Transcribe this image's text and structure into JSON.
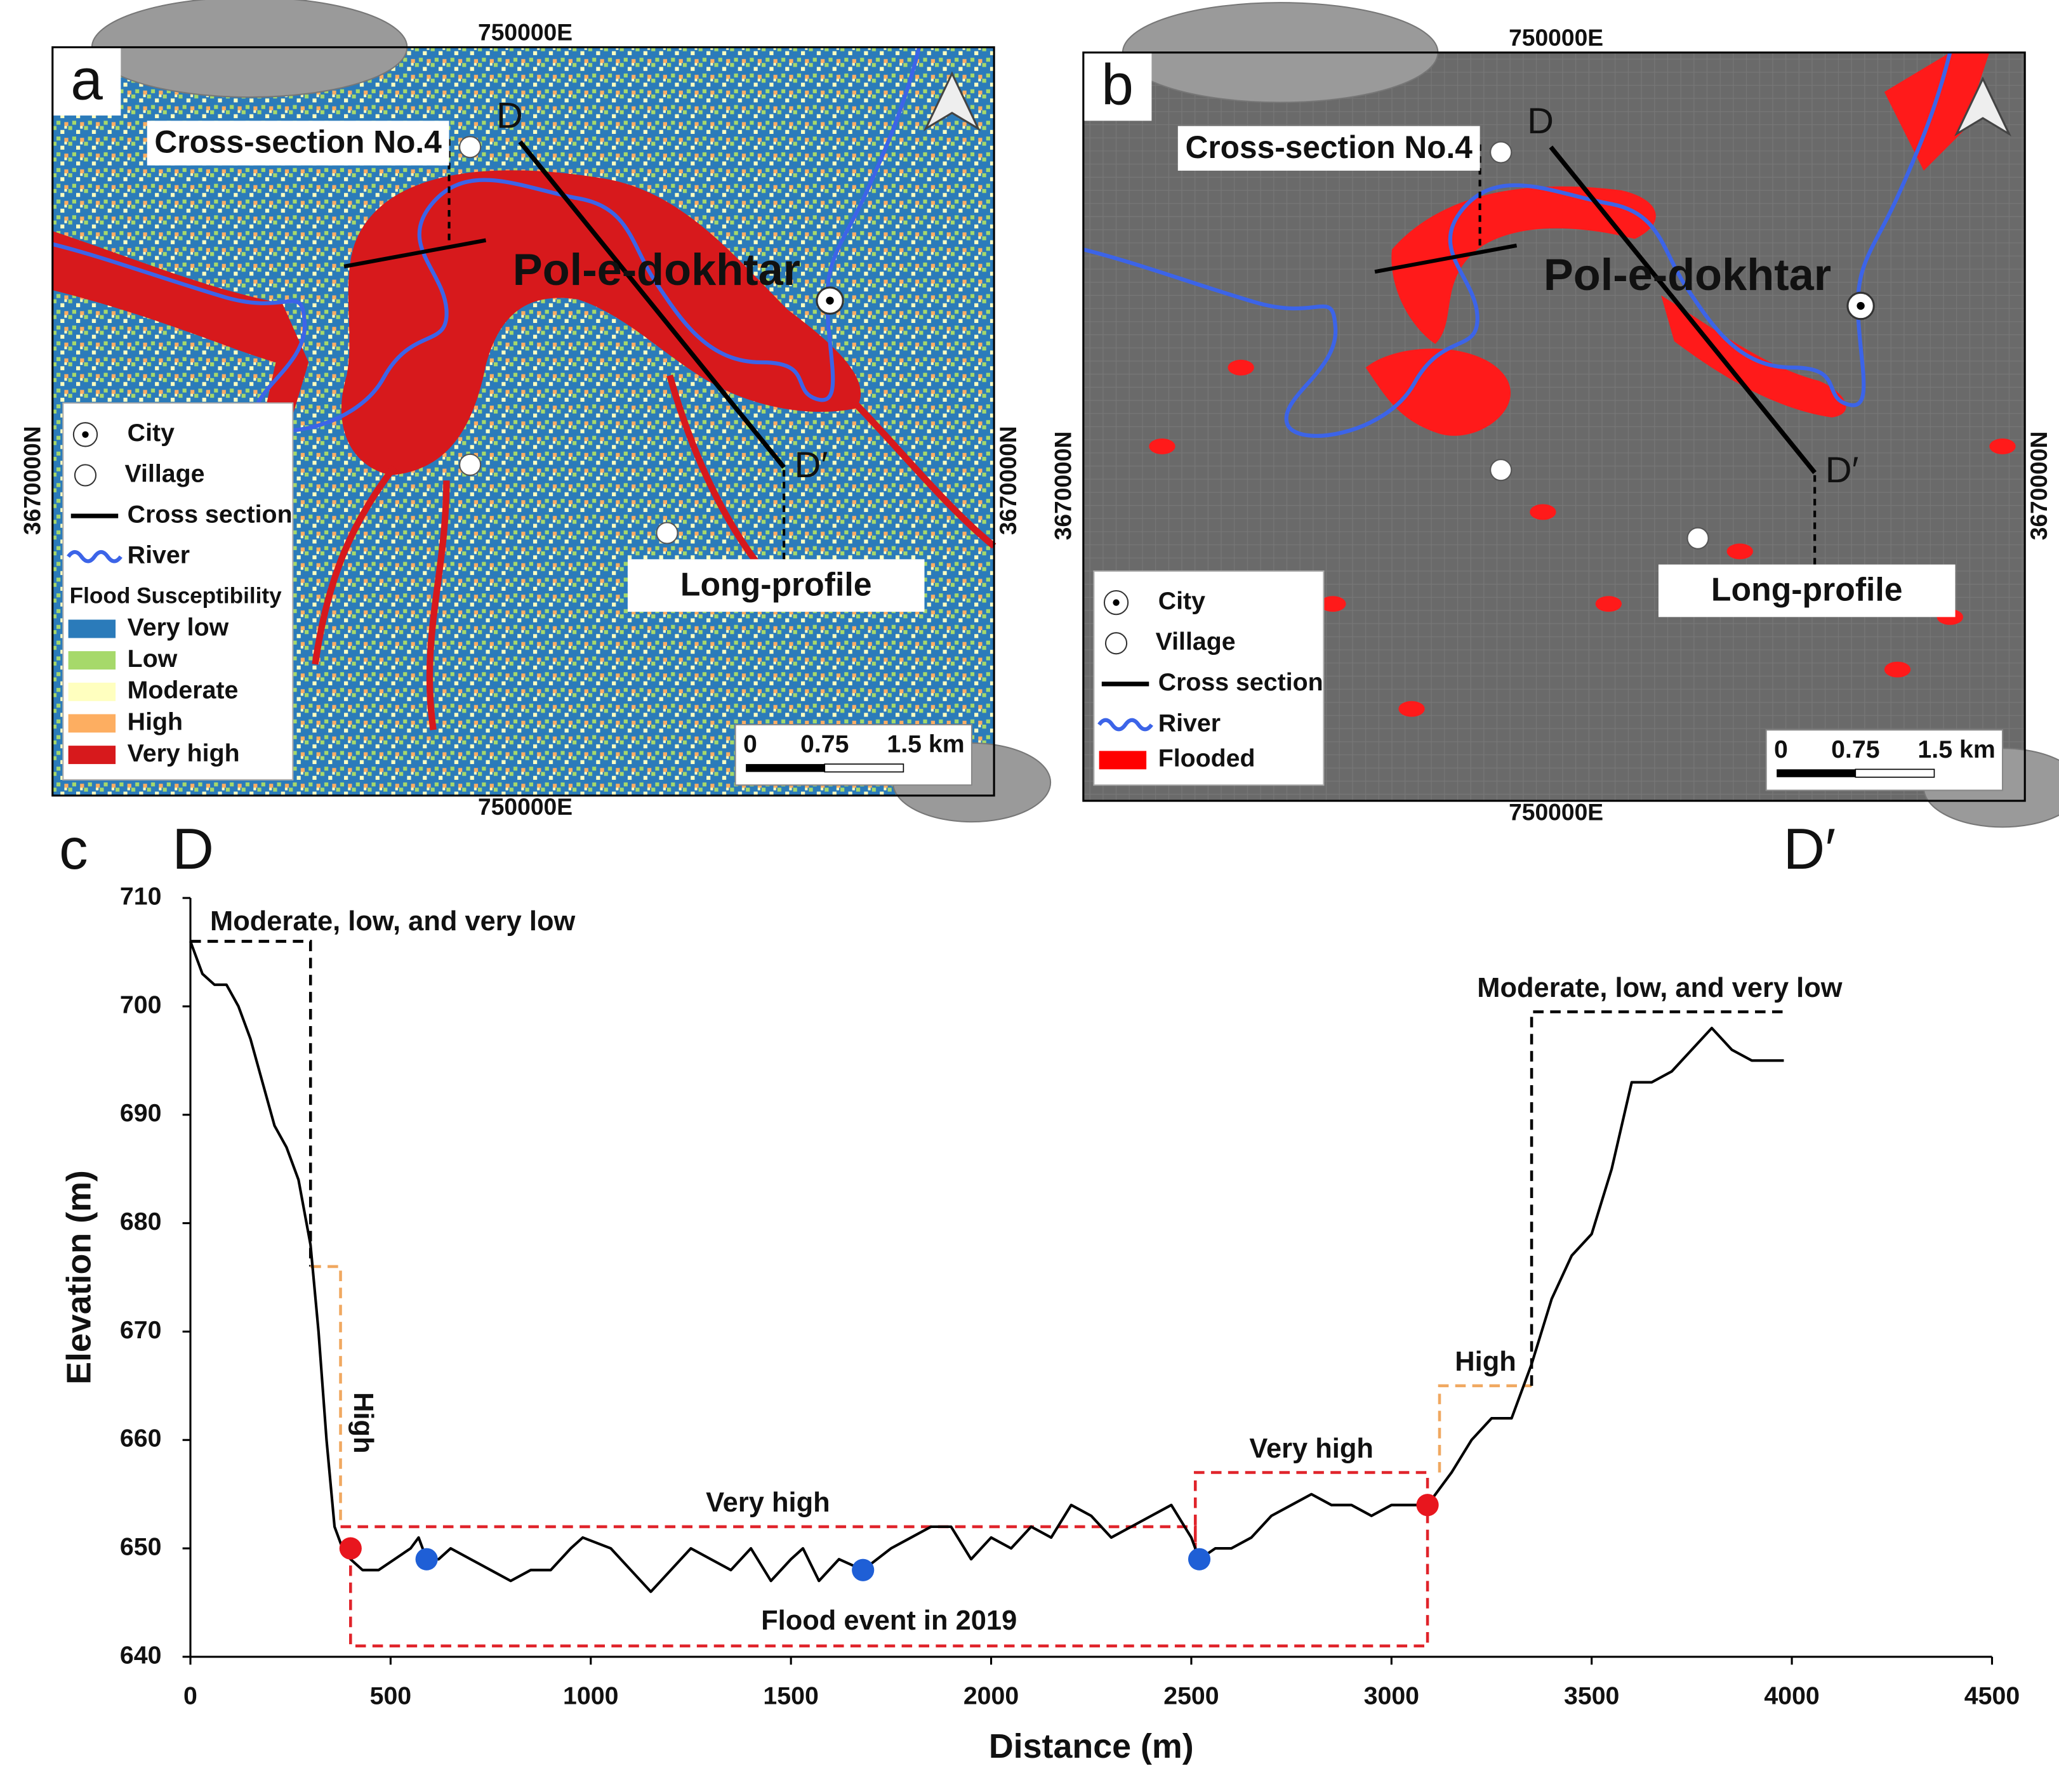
{
  "panels": [
    {
      "letter": "a",
      "top_label": "750000E",
      "bottom_label": "750000E",
      "left_label": "3670000N",
      "right_label": "3670000N",
      "cross_section": "Cross-section No.4",
      "d": "D",
      "d_prime": "D′",
      "town": "Pol-e-dokhtar",
      "long_profile": "Long-profile",
      "legend": {
        "items": [
          "City",
          "Village",
          "Cross section",
          "River"
        ],
        "title": "Flood Susceptibility",
        "classes": [
          {
            "name": "Very low",
            "color": "#2b7bba"
          },
          {
            "name": "Low",
            "color": "#a6d96a"
          },
          {
            "name": "Moderate",
            "color": "#ffffbf"
          },
          {
            "name": "High",
            "color": "#fdae61"
          },
          {
            "name": "Very high",
            "color": "#d7191c"
          }
        ]
      },
      "scale": [
        "0",
        "0.75",
        "1.5 km"
      ]
    },
    {
      "letter": "b",
      "top_label": "750000E",
      "bottom_label": "750000E",
      "left_label": "3670000N",
      "right_label": "3670000N",
      "cross_section": "Cross-section No.4",
      "d": "D",
      "d_prime": "D′",
      "town": "Pol-e-dokhtar",
      "long_profile": "Long-profile",
      "legend": {
        "items": [
          "City",
          "Village",
          "Cross section",
          "River"
        ],
        "classes": [
          {
            "name": "Flooded",
            "color": "#ff0000"
          }
        ]
      },
      "scale": [
        "0",
        "0.75",
        "1.5 km"
      ]
    }
  ],
  "chart_data": {
    "type": "line",
    "panel_label": "c",
    "start_label": "D",
    "end_label": "D′",
    "xlabel": "Distance (m)",
    "ylabel": "Elevation (m)",
    "color": "#000000",
    "xlim": [
      0,
      4500
    ],
    "ylim": [
      640,
      710
    ],
    "xticks": [
      0,
      500,
      1000,
      1500,
      2000,
      2500,
      3000,
      3500,
      4000,
      4500
    ],
    "yticks": [
      640,
      650,
      660,
      670,
      680,
      690,
      700,
      710
    ],
    "x": [
      0,
      30,
      60,
      90,
      120,
      150,
      180,
      210,
      240,
      270,
      300,
      320,
      340,
      360,
      380,
      400,
      430,
      470,
      510,
      550,
      570,
      590,
      620,
      650,
      700,
      750,
      800,
      850,
      900,
      950,
      980,
      1050,
      1100,
      1150,
      1200,
      1250,
      1300,
      1350,
      1400,
      1450,
      1500,
      1530,
      1570,
      1620,
      1680,
      1750,
      1800,
      1850,
      1900,
      1950,
      2000,
      2050,
      2100,
      2150,
      2200,
      2250,
      2300,
      2350,
      2400,
      2450,
      2500,
      2520,
      2560,
      2600,
      2650,
      2700,
      2750,
      2800,
      2850,
      2900,
      2950,
      3000,
      3050,
      3090,
      3150,
      3200,
      3250,
      3300,
      3350,
      3400,
      3450,
      3500,
      3550,
      3600,
      3650,
      3700,
      3750,
      3800,
      3850,
      3900,
      3980
    ],
    "values": [
      706,
      703,
      702,
      702,
      700,
      697,
      693,
      689,
      687,
      684,
      678,
      670,
      660,
      652,
      650,
      649,
      648,
      648,
      649,
      650,
      651,
      649,
      649,
      650,
      649,
      648,
      647,
      648,
      648,
      650,
      651,
      650,
      648,
      646,
      648,
      650,
      649,
      648,
      650,
      647,
      649,
      650,
      647,
      649,
      648,
      650,
      651,
      652,
      652,
      649,
      651,
      650,
      652,
      651,
      654,
      653,
      651,
      652,
      653,
      654,
      651,
      649,
      650,
      650,
      651,
      653,
      654,
      655,
      654,
      654,
      653,
      654,
      654,
      654,
      657,
      660,
      662,
      662,
      667,
      673,
      677,
      679,
      685,
      693,
      693,
      694,
      696,
      698,
      696,
      695,
      695
    ],
    "markers": [
      {
        "color": "#e8161e",
        "x": [
          400,
          3090
        ],
        "values": [
          650,
          654
        ]
      },
      {
        "color": "#1f5fd6",
        "x": [
          590,
          1680,
          2520
        ],
        "values": [
          649,
          648,
          649
        ]
      }
    ],
    "zones": [
      {
        "label": "Moderate, low, and very low",
        "color": "#000000",
        "x": [
          0,
          300,
          300
        ],
        "y": [
          706,
          706,
          676
        ]
      },
      {
        "label": "High",
        "color": "#f0a860",
        "x": [
          300,
          375,
          375
        ],
        "y": [
          676,
          676,
          652
        ]
      },
      {
        "label": "Very high",
        "color": "#e0232a",
        "x": [
          375,
          2510,
          2510
        ],
        "y": [
          652,
          652,
          649
        ]
      },
      {
        "label": "Very high",
        "color": "#e0232a",
        "x": [
          2510,
          2510,
          3090,
          3090
        ],
        "y": [
          649,
          657,
          657,
          654
        ]
      },
      {
        "label": "Flood event in 2019",
        "color": "#e0232a",
        "x": [
          400,
          400,
          3090,
          3090
        ],
        "y": [
          650,
          641,
          641,
          654
        ]
      },
      {
        "label": "High",
        "color": "#f0a860",
        "x": [
          3120,
          3120,
          3350,
          3350
        ],
        "y": [
          657,
          665,
          665,
          665
        ]
      },
      {
        "label": "Moderate, low, and very low",
        "color": "#000000",
        "x": [
          3350,
          3350,
          3990
        ],
        "y": [
          665,
          699.5,
          699.5
        ]
      }
    ]
  }
}
